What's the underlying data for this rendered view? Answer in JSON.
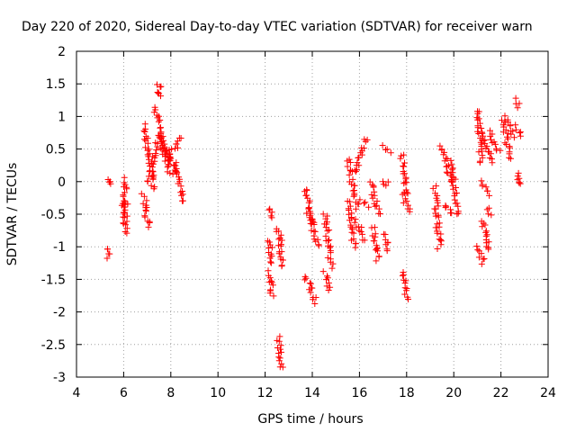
{
  "chart_data": {
    "type": "scatter",
    "title": "Day 220 of 2020, Sidereal Day-to-day VTEC variation (SDTVAR) for receiver warn",
    "xlabel": "GPS time / hours",
    "ylabel": "SDTVAR / TECUs",
    "xlim": [
      4,
      24
    ],
    "ylim": [
      -3,
      2
    ],
    "xticks": [
      4,
      6,
      8,
      10,
      12,
      14,
      16,
      18,
      20,
      22,
      24
    ],
    "yticks": [
      -3,
      -2.5,
      -2,
      -1.5,
      -1,
      -0.5,
      0,
      0.5,
      1,
      1.5,
      2
    ],
    "xtick_labels": [
      "4",
      "6",
      "8",
      "10",
      "12",
      "14",
      "16",
      "18",
      "20",
      "22",
      "24"
    ],
    "ytick_labels": [
      "-3",
      "-2.5",
      "-2",
      "-1.5",
      "-1",
      "-0.5",
      "0",
      "0.5",
      "1",
      "1.5",
      "2"
    ],
    "grid": true,
    "marker": "+",
    "color": "#ff0000",
    "segments": [
      {
        "x": [
          5.3,
          5.38
        ],
        "y": [
          0.0,
          0.0
        ]
      },
      {
        "x": [
          5.28,
          5.38
        ],
        "y": [
          -1.03,
          -1.17
        ]
      },
      {
        "x": [
          6.0,
          6.12
        ],
        "y": [
          0.05,
          -0.55
        ]
      },
      {
        "x": [
          6.0,
          6.1
        ],
        "y": [
          -0.3,
          -0.8
        ]
      },
      {
        "x": [
          6.85,
          7.3
        ],
        "y": [
          0.85,
          -0.1
        ]
      },
      {
        "x": [
          6.85,
          7.05
        ],
        "y": [
          -0.2,
          -0.7
        ]
      },
      {
        "x": [
          7.05,
          7.4
        ],
        "y": [
          0.0,
          0.6
        ]
      },
      {
        "x": [
          7.35,
          7.7
        ],
        "y": [
          1.15,
          0.4
        ]
      },
      {
        "x": [
          7.5,
          7.55
        ],
        "y": [
          1.5,
          1.3
        ]
      },
      {
        "x": [
          7.6,
          8.0
        ],
        "y": [
          0.7,
          0.1
        ]
      },
      {
        "x": [
          7.7,
          8.2
        ],
        "y": [
          0.55,
          0.2
        ]
      },
      {
        "x": [
          7.8,
          8.45
        ],
        "y": [
          0.3,
          0.7
        ]
      },
      {
        "x": [
          8.15,
          8.5
        ],
        "y": [
          0.3,
          -0.3
        ]
      },
      {
        "x": [
          12.2,
          12.3
        ],
        "y": [
          -0.4,
          -0.55
        ]
      },
      {
        "x": [
          12.18,
          12.28
        ],
        "y": [
          -0.9,
          -1.25
        ]
      },
      {
        "x": [
          12.15,
          12.3
        ],
        "y": [
          -1.4,
          -1.75
        ]
      },
      {
        "x": [
          12.55,
          12.75
        ],
        "y": [
          -0.7,
          -1.3
        ]
      },
      {
        "x": [
          12.55,
          12.7
        ],
        "y": [
          -2.4,
          -2.85
        ]
      },
      {
        "x": [
          13.7,
          14.2
        ],
        "y": [
          -0.1,
          -1.0
        ]
      },
      {
        "x": [
          13.75,
          14.15
        ],
        "y": [
          -0.5,
          -0.6
        ]
      },
      {
        "x": [
          13.7,
          14.15
        ],
        "y": [
          -1.45,
          -1.85
        ]
      },
      {
        "x": [
          14.55,
          14.8
        ],
        "y": [
          -0.5,
          -1.3
        ]
      },
      {
        "x": [
          14.55,
          14.7
        ],
        "y": [
          -1.4,
          -1.65
        ]
      },
      {
        "x": [
          15.5,
          15.9
        ],
        "y": [
          0.35,
          -0.4
        ]
      },
      {
        "x": [
          15.5,
          15.8
        ],
        "y": [
          -0.3,
          -1.0
        ]
      },
      {
        "x": [
          15.8,
          16.25
        ],
        "y": [
          0.15,
          0.65
        ]
      },
      {
        "x": [
          15.85,
          16.2
        ],
        "y": [
          -0.6,
          -0.9
        ]
      },
      {
        "x": [
          16.1,
          16.3
        ],
        "y": [
          -0.3,
          -0.4
        ]
      },
      {
        "x": [
          16.5,
          16.8
        ],
        "y": [
          0.0,
          -0.5
        ]
      },
      {
        "x": [
          16.6,
          16.8
        ],
        "y": [
          -0.7,
          -1.2
        ]
      },
      {
        "x": [
          17.05,
          17.25
        ],
        "y": [
          0.55,
          0.45
        ]
      },
      {
        "x": [
          17.05,
          17.25
        ],
        "y": [
          -0.8,
          -1.05
        ]
      },
      {
        "x": [
          17.05,
          17.2
        ],
        "y": [
          0.0,
          -0.05
        ]
      },
      {
        "x": [
          17.8,
          18.0
        ],
        "y": [
          0.4,
          -0.2
        ]
      },
      {
        "x": [
          17.85,
          18.15
        ],
        "y": [
          -0.2,
          -0.45
        ]
      },
      {
        "x": [
          17.85,
          18.0
        ],
        "y": [
          -1.4,
          -1.8
        ]
      },
      {
        "x": [
          19.2,
          19.4
        ],
        "y": [
          -0.1,
          -1.0
        ]
      },
      {
        "x": [
          19.5,
          19.9
        ],
        "y": [
          0.55,
          0.0
        ]
      },
      {
        "x": [
          19.6,
          19.9
        ],
        "y": [
          -0.35,
          -0.5
        ]
      },
      {
        "x": [
          19.9,
          20.15
        ],
        "y": [
          0.3,
          -0.5
        ]
      },
      {
        "x": [
          21.0,
          21.2
        ],
        "y": [
          1.1,
          0.3
        ]
      },
      {
        "x": [
          21.05,
          21.25
        ],
        "y": [
          -1.0,
          -1.25
        ]
      },
      {
        "x": [
          21.2,
          21.6
        ],
        "y": [
          0.8,
          0.3
        ]
      },
      {
        "x": [
          21.2,
          21.5
        ],
        "y": [
          0.0,
          -0.2
        ]
      },
      {
        "x": [
          21.25,
          21.45
        ],
        "y": [
          -0.6,
          -1.05
        ]
      },
      {
        "x": [
          21.4,
          21.6
        ],
        "y": [
          -0.4,
          -0.5
        ]
      },
      {
        "x": [
          21.5,
          21.9
        ],
        "y": [
          0.75,
          0.45
        ]
      },
      {
        "x": [
          22.1,
          22.35
        ],
        "y": [
          1.0,
          0.35
        ]
      },
      {
        "x": [
          22.3,
          22.5
        ],
        "y": [
          0.95,
          0.7
        ]
      },
      {
        "x": [
          22.7,
          22.8
        ],
        "y": [
          1.25,
          1.15
        ]
      },
      {
        "x": [
          22.7,
          22.8
        ],
        "y": [
          0.85,
          0.7
        ]
      },
      {
        "x": [
          22.7,
          22.8
        ],
        "y": [
          0.15,
          -0.05
        ]
      }
    ]
  }
}
